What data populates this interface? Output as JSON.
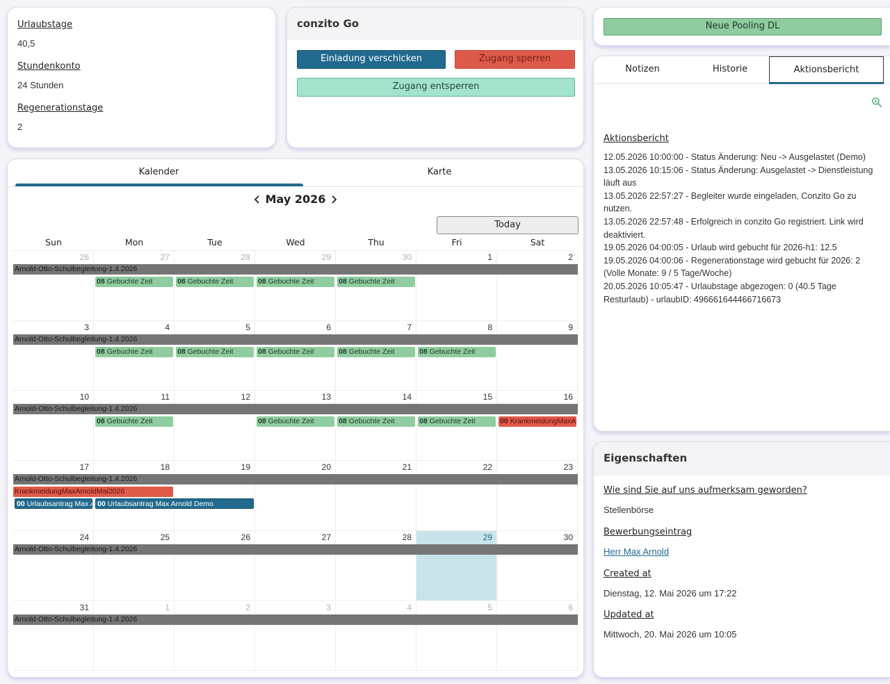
{
  "accounts": {
    "vacation_label": "Urlaubstage",
    "vacation_value": "40,5",
    "hours_label": "Stundenkonto",
    "hours_value": "24 Stunden",
    "regen_label": "Regenerationstage",
    "regen_value": "2"
  },
  "conzito": {
    "title": "conzito Go",
    "invite_button": "Einladung verschicken",
    "lock_button": "Zugang sperren",
    "unlock_button": "Zugang entsperren"
  },
  "pool": {
    "button": "Neue Pooling DL"
  },
  "right_tabs": {
    "notizen": "Notizen",
    "historie": "Historie",
    "aktion": "Aktionsbericht"
  },
  "aktionsbericht": {
    "title": "Aktionsbericht",
    "entries": [
      "12.05.2026 10:00:00 - Status Änderung: Neu -> Ausgelastet (Demo)",
      "13.05.2026 10:15:06 - Status Änderung: Ausgelastet -> Dienstleistung läuft aus",
      "13.05.2026 22:57:27 - Begleiter wurde eingeladen, Conzito Go zu nutzen.",
      "13.05.2026 22:57:48 - Erfolgreich in conzito Go registriert. Link wird deaktiviert.",
      "19.05.2026 04:00:05 - Urlaub wird gebucht für 2026-h1: 12.5",
      "19.05.2026 04:00:06 - Regenerationstage wird gebucht für 2026: 2 (Volle Monate: 9 / 5 Tage/Woche)",
      "20.05.2026 10:05:47 - Urlaubstage abgezogen: 0 (40.5 Tage Resturlaub) - urlaubID: 496661644466716673"
    ]
  },
  "properties": {
    "title": "Eigenschaften",
    "items": [
      {
        "label": "Wie sind Sie auf uns aufmerksam geworden?",
        "value": "Stellenbörse"
      },
      {
        "label": "Bewerbungseintrag",
        "value": "Herr Max Arnold"
      },
      {
        "label": "Created at",
        "value": "Dienstag, 12. Mai 2026 um 17:22"
      },
      {
        "label": "Updated at",
        "value": "Mittwoch, 20. Mai 2026 um 10:05"
      }
    ]
  },
  "calendar": {
    "tab_kalender": "Kalender",
    "tab_karte": "Karte",
    "month_title": "May 2026",
    "today_button": "Today",
    "weekdays": [
      "Sun",
      "Mon",
      "Tue",
      "Wed",
      "Thu",
      "Fri",
      "Sat"
    ],
    "weeks": [
      [
        "26",
        "27",
        "28",
        "29",
        "30",
        "1",
        "2"
      ],
      [
        "3",
        "4",
        "5",
        "6",
        "7",
        "8",
        "9"
      ],
      [
        "10",
        "11",
        "12",
        "13",
        "14",
        "15",
        "16"
      ],
      [
        "17",
        "18",
        "19",
        "20",
        "21",
        "22",
        "23"
      ],
      [
        "24",
        "25",
        "26",
        "27",
        "28",
        "29",
        "30"
      ],
      [
        "31",
        "1",
        "2",
        "3",
        "4",
        "5",
        "6"
      ]
    ],
    "other_month": [
      [
        true,
        true,
        true,
        true,
        true,
        false,
        false
      ],
      [
        false,
        false,
        false,
        false,
        false,
        false,
        false
      ],
      [
        false,
        false,
        false,
        false,
        false,
        false,
        false
      ],
      [
        false,
        false,
        false,
        false,
        false,
        false,
        false
      ],
      [
        false,
        false,
        false,
        false,
        false,
        false,
        false
      ],
      [
        false,
        true,
        true,
        true,
        true,
        true,
        true
      ]
    ],
    "today": {
      "week": 4,
      "day": 5
    },
    "school_event": "Arnold-Otto-Schulbegleitung-1.4.2026",
    "booked_time": "00",
    "booked_time_label": "08",
    "booked_label": "Gebuchte Zeit",
    "sick_short": "00",
    "sick_label_week3": "KrankmeldungMaxAr",
    "sick_label_week4": "KrankmeldungMaxArnoldMai2026",
    "vac_time": "00",
    "vac_label_short": "Urlaubsantrag Max A",
    "vac_label_long": "Urlaubsantrag Max Arnold Demo"
  }
}
